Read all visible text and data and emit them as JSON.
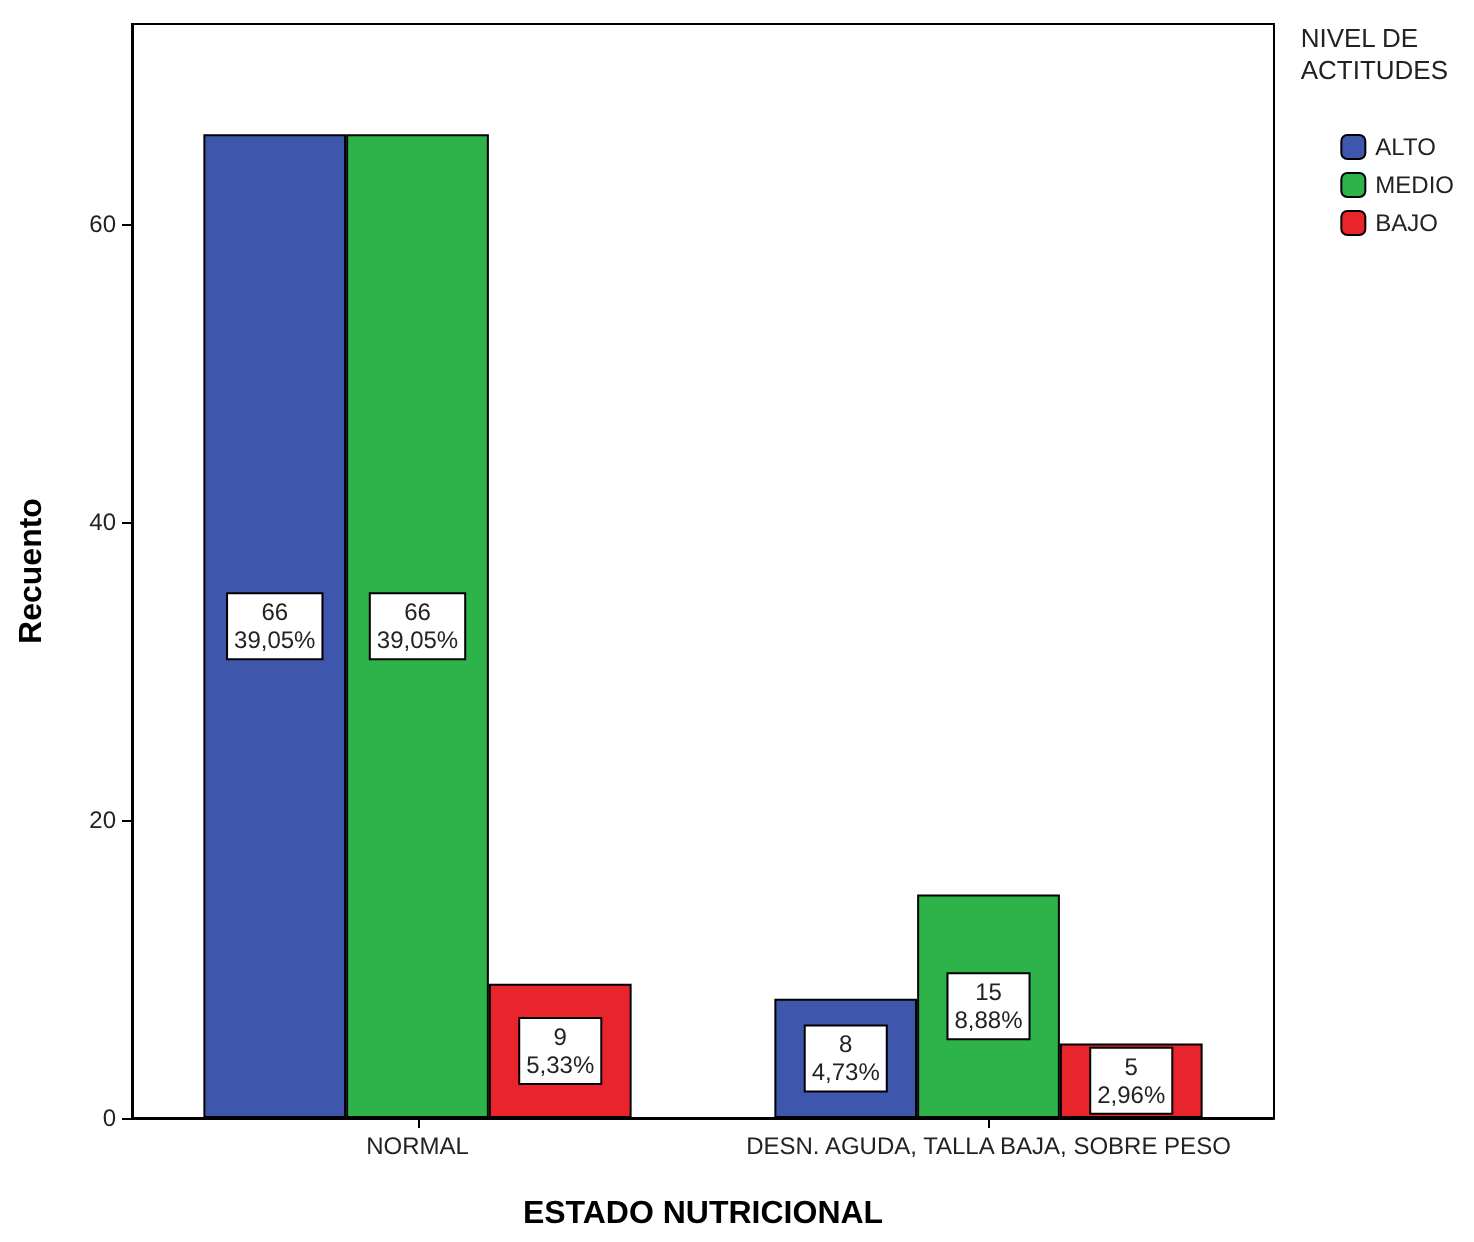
{
  "chart_data": {
    "type": "bar",
    "xlabel": "ESTADO NUTRICIONAL",
    "ylabel": "Recuento",
    "legend_title": "NIVEL DE\nACTITUDES",
    "categories": [
      "NORMAL",
      "DESN. AGUDA, TALLA BAJA, SOBRE PESO"
    ],
    "series": [
      {
        "name": "ALTO",
        "color": "#3e57ac",
        "values": [
          66,
          8
        ],
        "value_labels": [
          "66\n39,05%",
          "8\n4,73%"
        ]
      },
      {
        "name": "MEDIO",
        "color": "#2eb24a",
        "values": [
          66,
          15
        ],
        "value_labels": [
          "66\n39,05%",
          "15\n8,88%"
        ]
      },
      {
        "name": "BAJO",
        "color": "#e8242c",
        "values": [
          9,
          5
        ],
        "value_labels": [
          "9\n5,33%",
          "5\n2,96%"
        ]
      }
    ],
    "ylim": [
      0,
      73.4
    ],
    "yticks": [
      0,
      20,
      40,
      60
    ],
    "grid": false,
    "legend": "right"
  }
}
